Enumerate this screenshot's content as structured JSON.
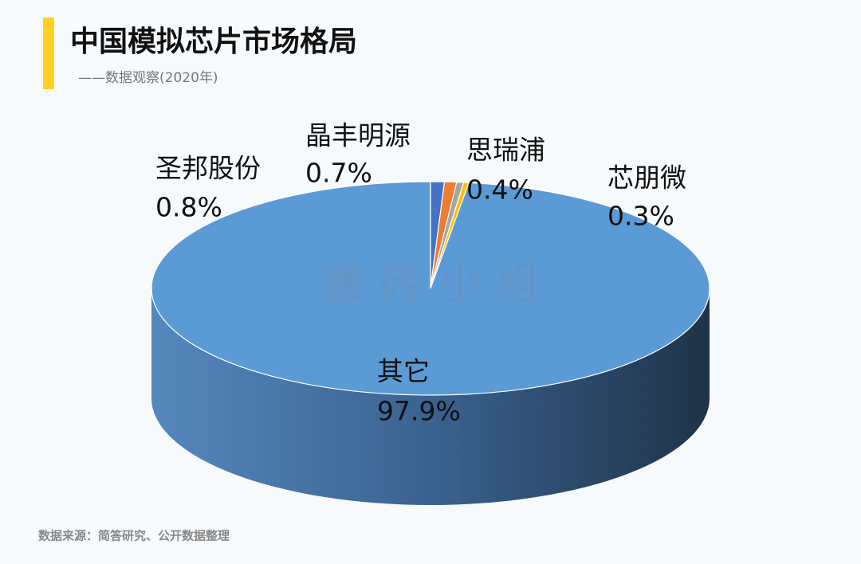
{
  "chart_data": {
    "type": "pie",
    "title": "中国模拟芯片市场格局",
    "subtitle": "——数据观察(2020年)",
    "source": "数据来源：简答研究、公开数据整理",
    "watermark": "搬 砖 小 组",
    "categories": [
      "圣邦股份",
      "晶丰明源",
      "思瑞浦",
      "芯朋微",
      "其它"
    ],
    "values": [
      0.8,
      0.7,
      0.4,
      0.3,
      97.9
    ],
    "value_labels": [
      "0.8%",
      "0.7%",
      "0.4%",
      "0.3%",
      "97.9%"
    ],
    "colors": [
      "#4472c4",
      "#ed7d31",
      "#a5a5a5",
      "#ffc000",
      "#5b9bd5"
    ]
  }
}
